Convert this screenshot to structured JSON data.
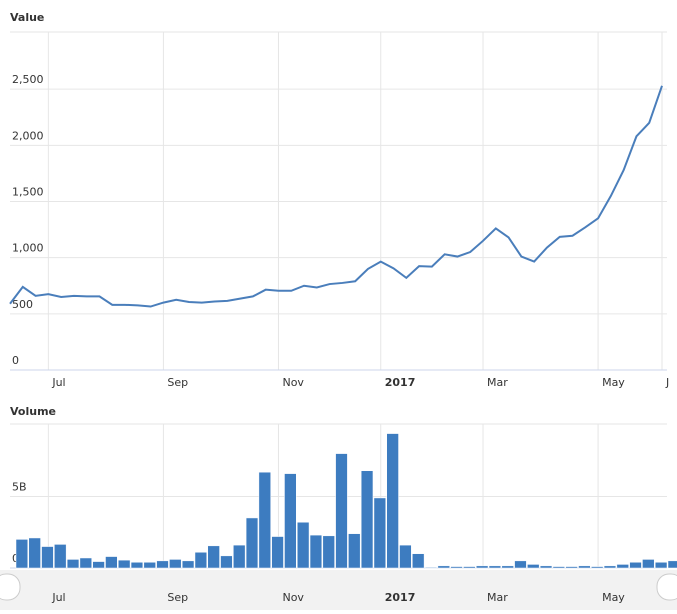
{
  "chart_data": [
    {
      "type": "line",
      "title": "Value",
      "color": "#4a7ebb",
      "grid": true,
      "categories": [
        null,
        null,
        null,
        "Jul",
        null,
        null,
        null,
        null,
        null,
        null,
        null,
        null,
        "Sep",
        null,
        null,
        null,
        null,
        null,
        null,
        null,
        null,
        "Nov",
        null,
        null,
        null,
        null,
        null,
        null,
        null,
        "2017",
        null,
        null,
        null,
        null,
        null,
        null,
        null,
        "Mar",
        null,
        null,
        null,
        null,
        null,
        null,
        null,
        null,
        "May",
        null,
        null,
        null,
        null,
        "J"
      ],
      "values": [
        590,
        740,
        660,
        675,
        650,
        660,
        655,
        655,
        580,
        580,
        575,
        565,
        600,
        625,
        605,
        600,
        610,
        615,
        635,
        655,
        715,
        705,
        705,
        750,
        735,
        765,
        775,
        790,
        900,
        965,
        905,
        820,
        925,
        920,
        1030,
        1010,
        1050,
        1150,
        1260,
        1180,
        1010,
        965,
        1090,
        1185,
        1195,
        1270,
        1350,
        1550,
        1780,
        2080,
        2200,
        2530
      ],
      "ylim": [
        0,
        3000
      ],
      "yticks": [
        0,
        500,
        {
          "value": 1000,
          "label": "1,000"
        },
        {
          "value": 1500,
          "label": "1,500"
        },
        {
          "value": 2000,
          "label": "2,000"
        },
        {
          "value": 2500,
          "label": "2,500"
        }
      ]
    },
    {
      "type": "bar",
      "title": "Volume",
      "color": "#3d7cc0",
      "grid": true,
      "categories": [
        null,
        null,
        null,
        "Jul",
        null,
        null,
        null,
        null,
        null,
        null,
        null,
        null,
        "Sep",
        null,
        null,
        null,
        null,
        null,
        null,
        null,
        null,
        "Nov",
        null,
        null,
        null,
        null,
        null,
        null,
        null,
        "2017",
        null,
        null,
        null,
        null,
        null,
        null,
        null,
        "Mar",
        null,
        null,
        null,
        null,
        null,
        null,
        null,
        null,
        "May",
        null,
        null,
        null,
        null,
        null
      ],
      "values": [
        2.0,
        2.1,
        1.5,
        1.65,
        0.6,
        0.7,
        0.45,
        0.8,
        0.55,
        0.4,
        0.4,
        0.5,
        0.6,
        0.5,
        1.1,
        1.55,
        0.85,
        1.6,
        3.5,
        6.7,
        2.2,
        6.6,
        3.2,
        2.3,
        2.25,
        8.0,
        2.4,
        6.8,
        4.9,
        9.4,
        1.6,
        1.0,
        0.05,
        0.15,
        0.1,
        0.1,
        0.15,
        0.15,
        0.15,
        0.5,
        0.25,
        0.15,
        0.1,
        0.1,
        0.15,
        0.1,
        0.15,
        0.25,
        0.4,
        0.6,
        0.4,
        0.5
      ],
      "ylim": [
        0,
        10
      ],
      "yticks": [
        0,
        {
          "value": 5,
          "label": "5B"
        }
      ]
    }
  ]
}
